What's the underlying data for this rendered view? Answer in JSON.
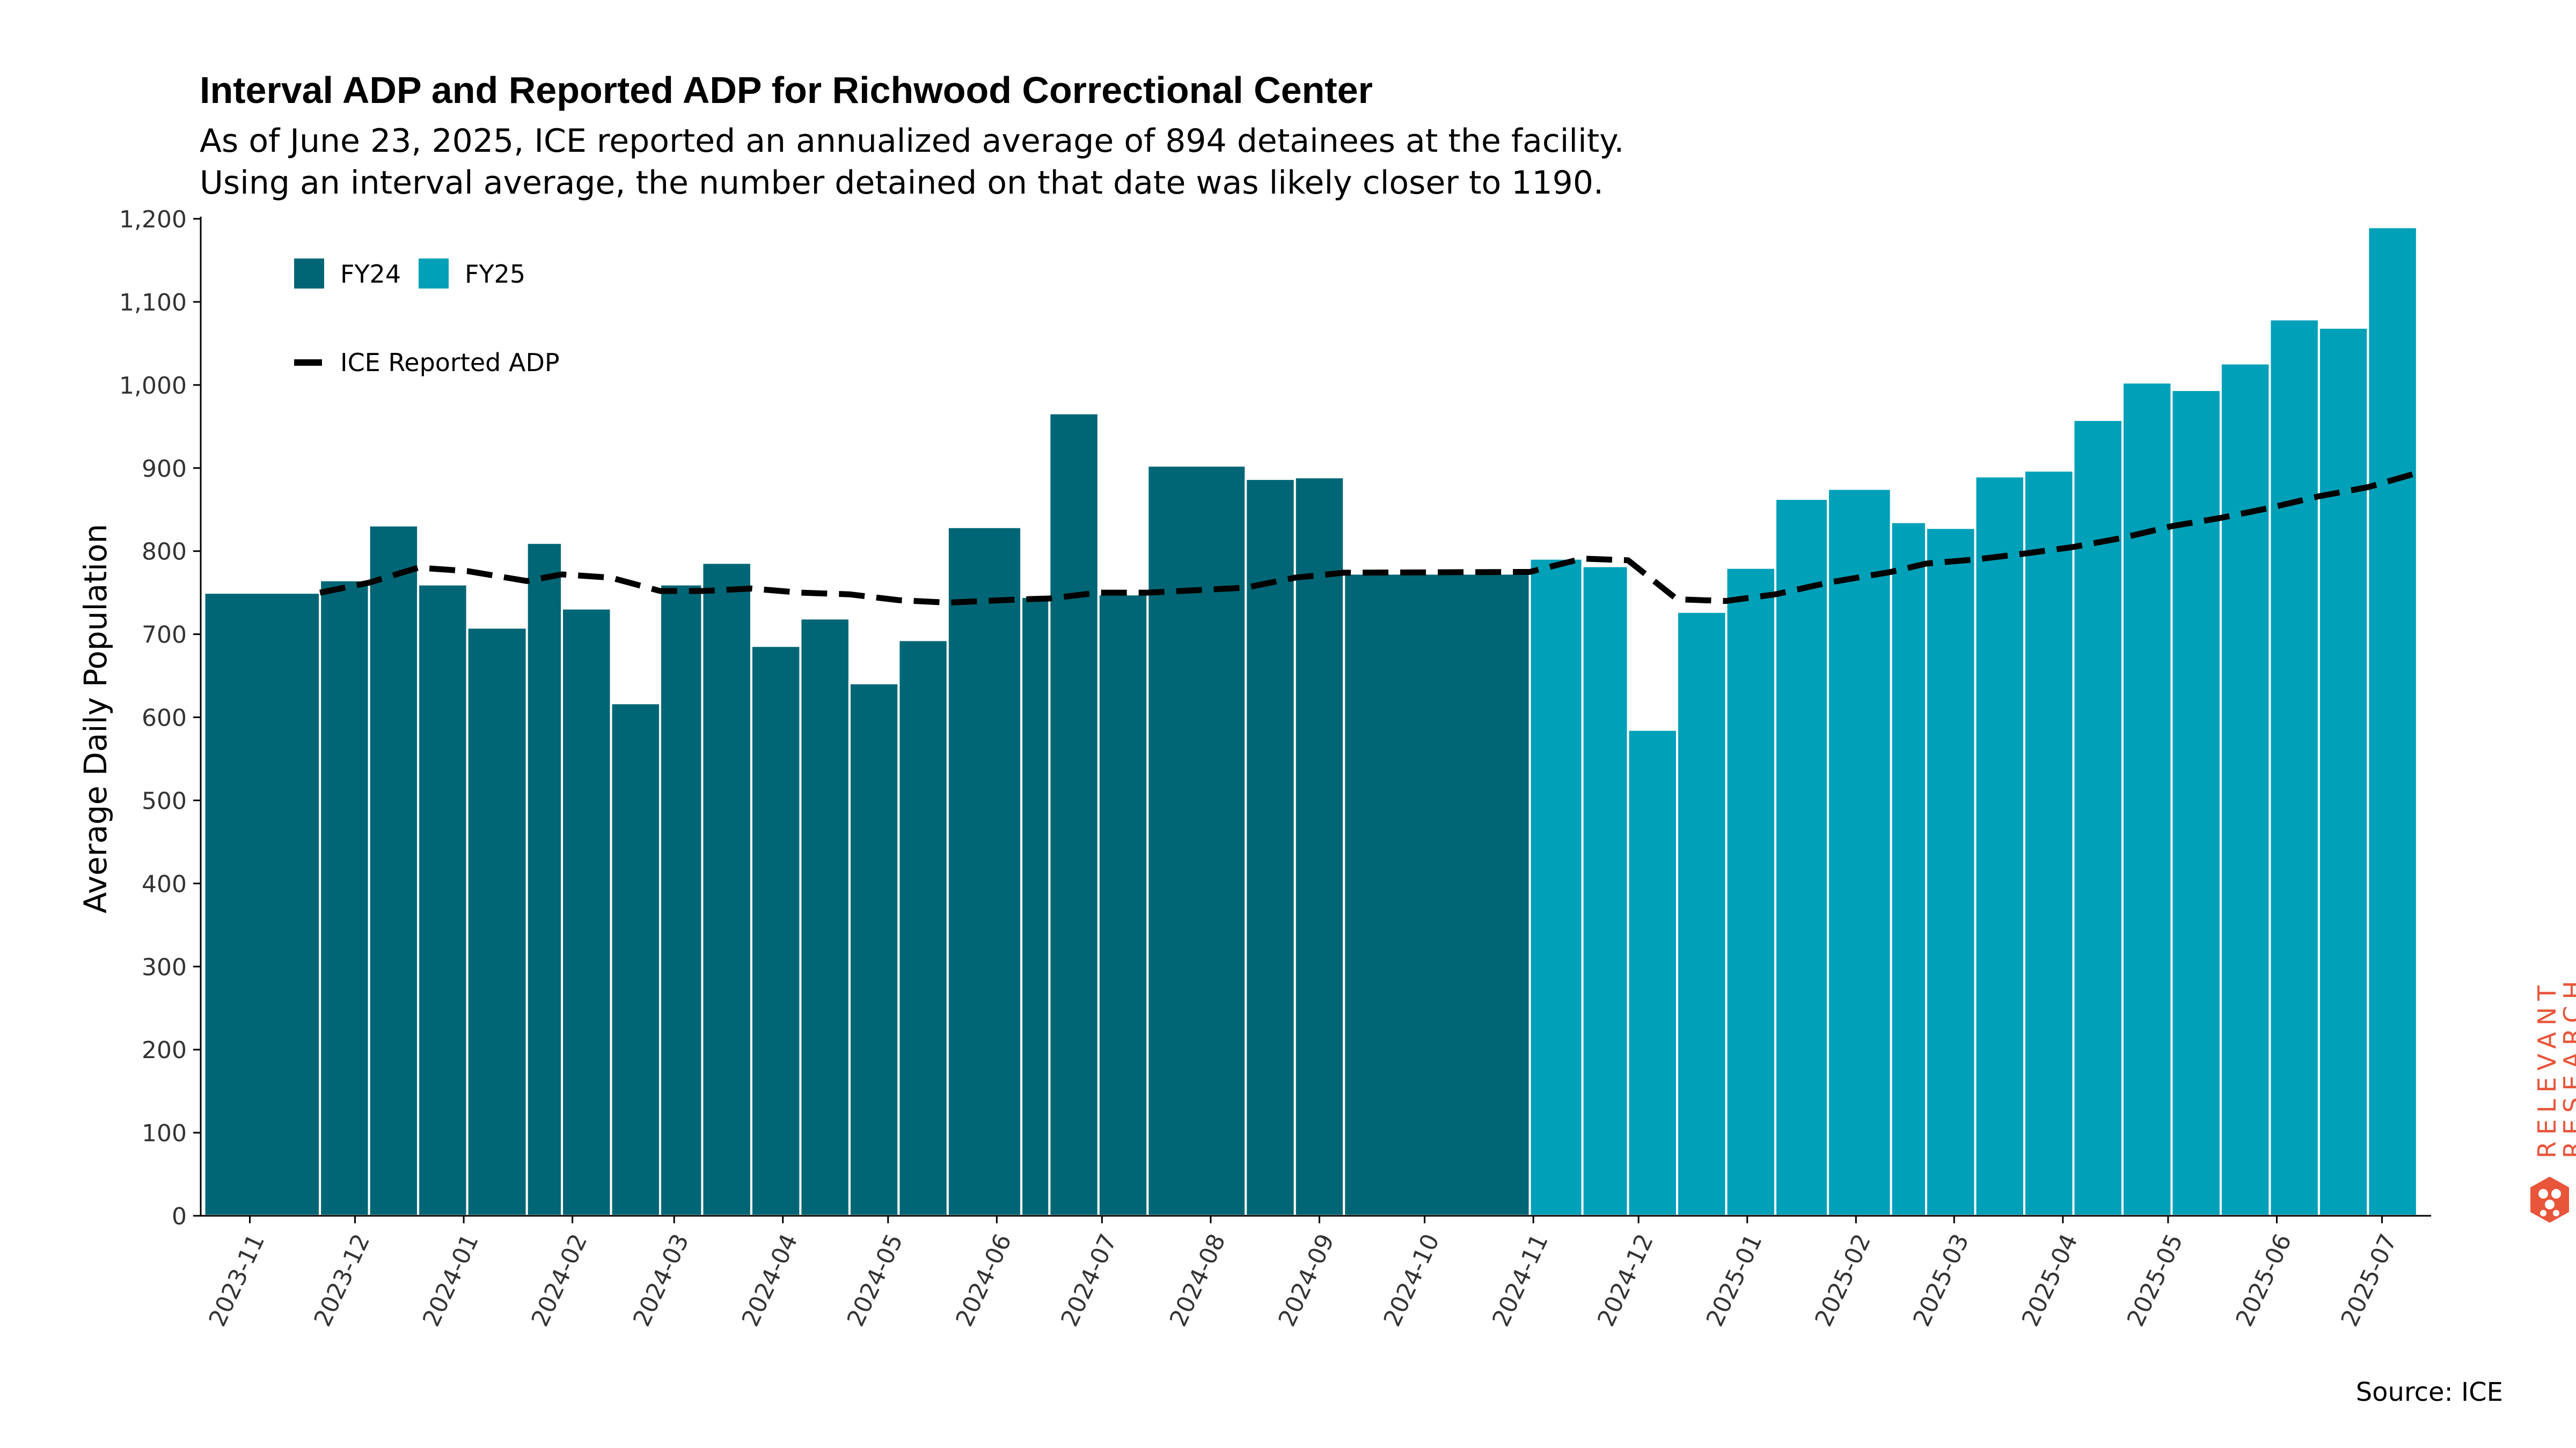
{
  "title": "Interval ADP and Reported ADP for Richwood Correctional Center",
  "subtitle_line1": "As of June 23, 2025, ICE reported an annualized average of 894 detainees at the facility.",
  "subtitle_line2": "Using an interval average, the number detained on that date was likely closer to 1190.",
  "source": "Source: ICE",
  "logo": {
    "line1": "RELEVANT",
    "line2": "RESEARCH",
    "color": "#e8553a"
  },
  "colors": {
    "fy24": "#006675",
    "fy25": "#00a0b8",
    "line": "#000000"
  },
  "chart_data": {
    "type": "bar",
    "ylabel": "Average Daily Population",
    "ylim": [
      0,
      1200
    ],
    "yticks": [
      0,
      100,
      200,
      300,
      400,
      500,
      600,
      700,
      800,
      900,
      1000,
      1100,
      1200
    ],
    "ytick_labels": [
      "0",
      "100",
      "200",
      "300",
      "400",
      "500",
      "600",
      "700",
      "800",
      "900",
      "1,000",
      "1,100",
      "1,200"
    ],
    "xlim": [
      "2023-10-18",
      "2025-07-15"
    ],
    "xticks": [
      "2023-11-01",
      "2023-12-01",
      "2024-01-01",
      "2024-02-01",
      "2024-03-01",
      "2024-04-01",
      "2024-05-01",
      "2024-06-01",
      "2024-07-01",
      "2024-08-01",
      "2024-09-01",
      "2024-10-01",
      "2024-11-01",
      "2024-12-01",
      "2025-01-01",
      "2025-02-01",
      "2025-03-01",
      "2025-04-01",
      "2025-05-01",
      "2025-06-01",
      "2025-07-01"
    ],
    "xtick_labels": [
      "2023-11",
      "2023-12",
      "2024-01",
      "2024-02",
      "2024-03",
      "2024-04",
      "2024-05",
      "2024-06",
      "2024-07",
      "2024-08",
      "2024-09",
      "2024-10",
      "2024-11",
      "2024-12",
      "2025-01",
      "2025-02",
      "2025-03",
      "2025-04",
      "2025-05",
      "2025-06",
      "2025-07"
    ],
    "legend": {
      "placement": "top-left",
      "entries": [
        "FY24",
        "FY25",
        "ICE Reported ADP"
      ]
    },
    "series": [
      {
        "name": "FY24",
        "bars": [
          {
            "start": "2023-10-19",
            "end": "2023-11-21",
            "value": 750
          },
          {
            "start": "2023-11-21",
            "end": "2023-12-05",
            "value": 765
          },
          {
            "start": "2023-12-05",
            "end": "2023-12-19",
            "value": 831
          },
          {
            "start": "2023-12-19",
            "end": "2024-01-02",
            "value": 760
          },
          {
            "start": "2024-01-02",
            "end": "2024-01-19",
            "value": 708
          },
          {
            "start": "2024-01-19",
            "end": "2024-01-29",
            "value": 810
          },
          {
            "start": "2024-01-29",
            "end": "2024-02-12",
            "value": 731
          },
          {
            "start": "2024-02-12",
            "end": "2024-02-26",
            "value": 617
          },
          {
            "start": "2024-02-26",
            "end": "2024-03-09",
            "value": 760
          },
          {
            "start": "2024-03-09",
            "end": "2024-03-23",
            "value": 786
          },
          {
            "start": "2024-03-23",
            "end": "2024-04-06",
            "value": 686
          },
          {
            "start": "2024-04-06",
            "end": "2024-04-20",
            "value": 719
          },
          {
            "start": "2024-04-20",
            "end": "2024-05-04",
            "value": 641
          },
          {
            "start": "2024-05-04",
            "end": "2024-05-18",
            "value": 693
          },
          {
            "start": "2024-05-18",
            "end": "2024-06-08",
            "value": 829
          },
          {
            "start": "2024-06-08",
            "end": "2024-06-16",
            "value": 745
          },
          {
            "start": "2024-06-16",
            "end": "2024-06-30",
            "value": 966
          },
          {
            "start": "2024-06-30",
            "end": "2024-07-14",
            "value": 748
          },
          {
            "start": "2024-07-14",
            "end": "2024-08-11",
            "value": 903
          },
          {
            "start": "2024-08-11",
            "end": "2024-08-25",
            "value": 887
          },
          {
            "start": "2024-08-25",
            "end": "2024-09-08",
            "value": 889
          },
          {
            "start": "2024-09-08",
            "end": "2024-10-31",
            "value": 773
          }
        ]
      },
      {
        "name": "FY25",
        "bars": [
          {
            "start": "2024-10-31",
            "end": "2024-11-15",
            "value": 791
          },
          {
            "start": "2024-11-15",
            "end": "2024-11-28",
            "value": 782
          },
          {
            "start": "2024-11-28",
            "end": "2024-12-12",
            "value": 585
          },
          {
            "start": "2024-12-12",
            "end": "2024-12-26",
            "value": 727
          },
          {
            "start": "2024-12-26",
            "end": "2025-01-09",
            "value": 780
          },
          {
            "start": "2025-01-09",
            "end": "2025-01-24",
            "value": 863
          },
          {
            "start": "2025-01-24",
            "end": "2025-02-11",
            "value": 875
          },
          {
            "start": "2025-02-11",
            "end": "2025-02-21",
            "value": 835
          },
          {
            "start": "2025-02-21",
            "end": "2025-03-07",
            "value": 828
          },
          {
            "start": "2025-03-07",
            "end": "2025-03-21",
            "value": 890
          },
          {
            "start": "2025-03-21",
            "end": "2025-04-04",
            "value": 897
          },
          {
            "start": "2025-04-04",
            "end": "2025-04-18",
            "value": 958
          },
          {
            "start": "2025-04-18",
            "end": "2025-05-02",
            "value": 1003
          },
          {
            "start": "2025-05-02",
            "end": "2025-05-16",
            "value": 994
          },
          {
            "start": "2025-05-16",
            "end": "2025-05-30",
            "value": 1026
          },
          {
            "start": "2025-05-30",
            "end": "2025-06-13",
            "value": 1079
          },
          {
            "start": "2025-06-13",
            "end": "2025-06-27",
            "value": 1069
          },
          {
            "start": "2025-06-27",
            "end": "2025-07-11",
            "value": 1190
          }
        ]
      }
    ],
    "line": {
      "name": "ICE Reported ADP",
      "points": [
        {
          "x": "2023-11-21",
          "y": 750
        },
        {
          "x": "2023-12-05",
          "y": 762
        },
        {
          "x": "2023-12-19",
          "y": 780
        },
        {
          "x": "2024-01-02",
          "y": 776
        },
        {
          "x": "2024-01-19",
          "y": 764
        },
        {
          "x": "2024-01-29",
          "y": 772
        },
        {
          "x": "2024-02-12",
          "y": 768
        },
        {
          "x": "2024-02-26",
          "y": 752
        },
        {
          "x": "2024-03-09",
          "y": 752
        },
        {
          "x": "2024-03-23",
          "y": 755
        },
        {
          "x": "2024-04-06",
          "y": 750
        },
        {
          "x": "2024-04-20",
          "y": 748
        },
        {
          "x": "2024-05-04",
          "y": 741
        },
        {
          "x": "2024-05-18",
          "y": 738
        },
        {
          "x": "2024-06-08",
          "y": 742
        },
        {
          "x": "2024-06-16",
          "y": 743
        },
        {
          "x": "2024-06-30",
          "y": 750
        },
        {
          "x": "2024-07-14",
          "y": 750
        },
        {
          "x": "2024-08-11",
          "y": 756
        },
        {
          "x": "2024-08-25",
          "y": 768
        },
        {
          "x": "2024-09-08",
          "y": 774
        },
        {
          "x": "2024-10-31",
          "y": 775
        },
        {
          "x": "2024-11-15",
          "y": 791
        },
        {
          "x": "2024-11-28",
          "y": 789
        },
        {
          "x": "2024-12-12",
          "y": 742
        },
        {
          "x": "2024-12-26",
          "y": 740
        },
        {
          "x": "2025-01-09",
          "y": 748
        },
        {
          "x": "2025-01-24",
          "y": 762
        },
        {
          "x": "2025-02-11",
          "y": 775
        },
        {
          "x": "2025-02-21",
          "y": 785
        },
        {
          "x": "2025-03-07",
          "y": 790
        },
        {
          "x": "2025-03-21",
          "y": 797
        },
        {
          "x": "2025-04-04",
          "y": 805
        },
        {
          "x": "2025-04-18",
          "y": 816
        },
        {
          "x": "2025-05-02",
          "y": 830
        },
        {
          "x": "2025-05-16",
          "y": 840
        },
        {
          "x": "2025-05-30",
          "y": 852
        },
        {
          "x": "2025-06-13",
          "y": 866
        },
        {
          "x": "2025-06-27",
          "y": 877
        },
        {
          "x": "2025-07-11",
          "y": 894
        }
      ]
    }
  }
}
